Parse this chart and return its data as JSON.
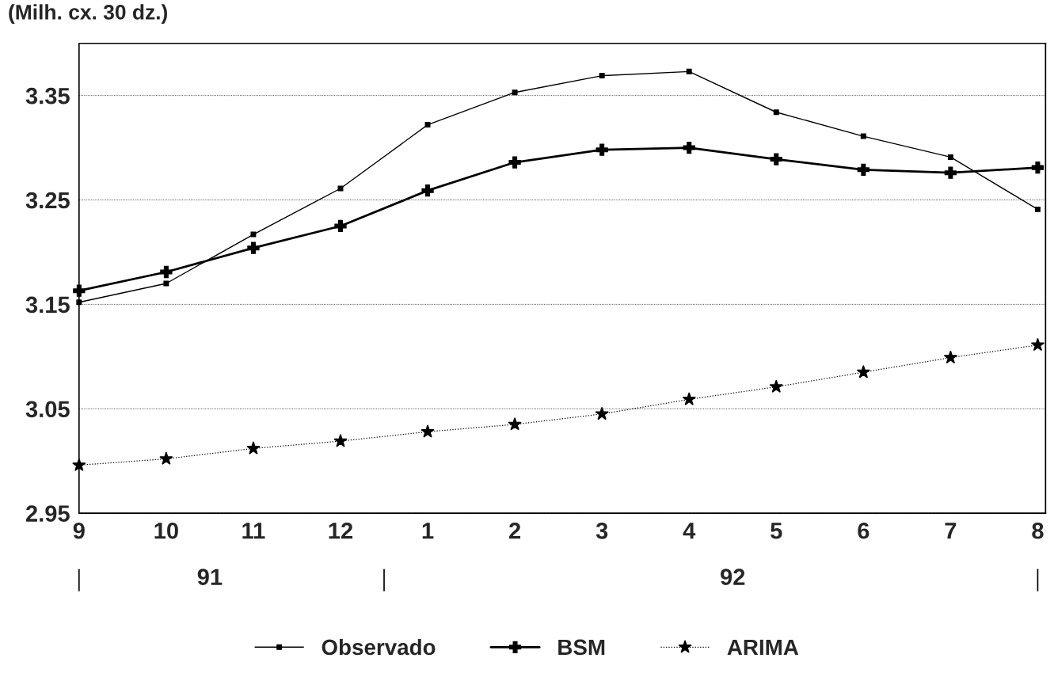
{
  "chart_data": {
    "type": "line",
    "ylabel": "(Milh. cx. 30 dz.)",
    "categories": [
      "9",
      "10",
      "11",
      "12",
      "1",
      "2",
      "3",
      "4",
      "5",
      "6",
      "7",
      "8"
    ],
    "series": [
      {
        "name": "Observado",
        "color": "#000000",
        "marker": "square",
        "line_style": "solid",
        "values": [
          3.152,
          3.17,
          3.217,
          3.261,
          3.322,
          3.353,
          3.369,
          3.373,
          3.334,
          3.311,
          3.291,
          3.241
        ]
      },
      {
        "name": "BSM",
        "color": "#000000",
        "marker": "cross",
        "line_style": "solid",
        "values": [
          3.163,
          3.181,
          3.204,
          3.225,
          3.259,
          3.286,
          3.298,
          3.3,
          3.289,
          3.279,
          3.276,
          3.281
        ]
      },
      {
        "name": "ARIMA",
        "color": "#000000",
        "marker": "star",
        "line_style": "dotted",
        "values": [
          2.996,
          3.002,
          3.012,
          3.019,
          3.028,
          3.035,
          3.045,
          3.059,
          3.071,
          3.085,
          3.099,
          3.111
        ]
      }
    ],
    "ylim": [
      2.95,
      3.4
    ],
    "yticks": [
      2.95,
      3.05,
      3.15,
      3.25,
      3.35
    ],
    "grid": "y",
    "legend": "bottom",
    "annotations": [
      "91",
      "92"
    ]
  }
}
